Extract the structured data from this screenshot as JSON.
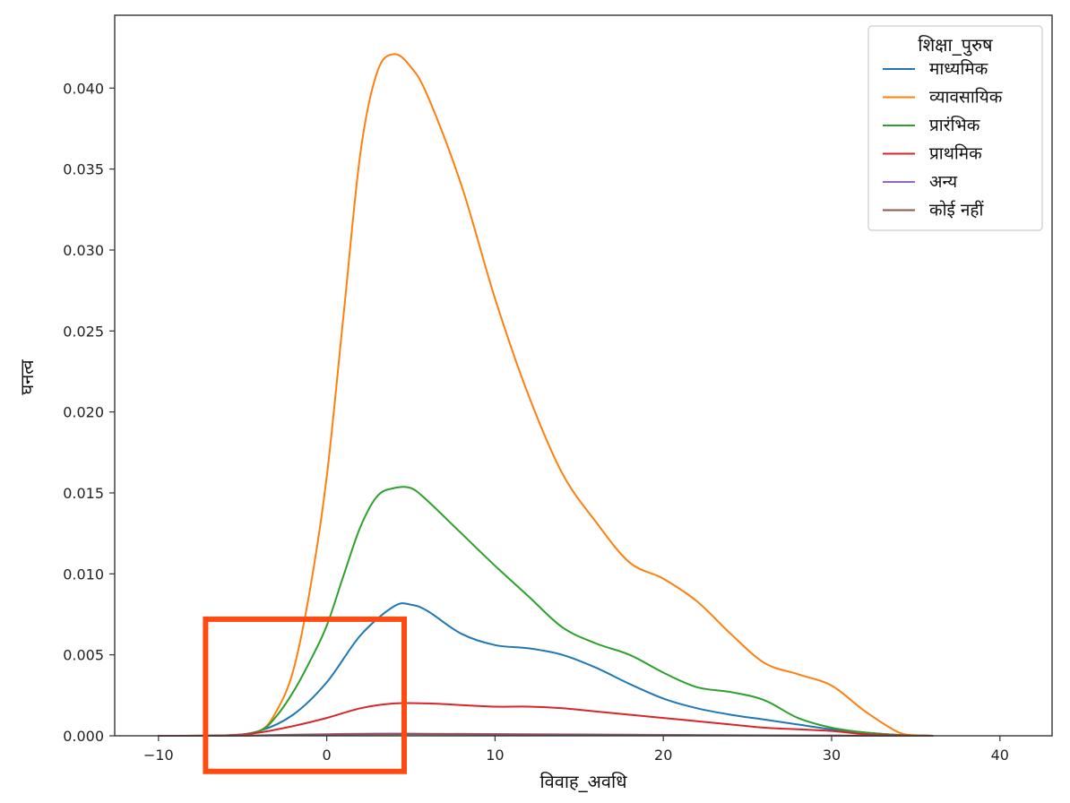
{
  "chart_data": {
    "type": "line",
    "title": "",
    "xlabel": "विवाह_अवधि",
    "ylabel": "घनत्व",
    "xlim": [
      -12.6,
      43.1
    ],
    "ylim": [
      0,
      0.0445
    ],
    "xticks": [
      -10,
      0,
      10,
      20,
      30,
      40
    ],
    "xtick_labels": [
      "−10",
      "0",
      "10",
      "20",
      "30",
      "40"
    ],
    "yticks": [
      0,
      0.005,
      0.01,
      0.015,
      0.02,
      0.025,
      0.03,
      0.035,
      0.04
    ],
    "ytick_labels": [
      "0.000",
      "0.005",
      "0.010",
      "0.015",
      "0.020",
      "0.025",
      "0.030",
      "0.035",
      "0.040"
    ],
    "grid": false,
    "legend": {
      "title": "शिक्षा_पुरुष",
      "position": "top-right"
    },
    "series": [
      {
        "name": "माध्यमिक",
        "color": "#1f77b4",
        "x": [
          -10,
          -6,
          -4,
          -2,
          0,
          2,
          4,
          5,
          6,
          8,
          10,
          12,
          14,
          16,
          18,
          20,
          22,
          24,
          26,
          28,
          30,
          32,
          34,
          36
        ],
        "y": [
          0,
          3e-05,
          0.0003,
          0.0013,
          0.0033,
          0.0062,
          0.008,
          0.0081,
          0.0077,
          0.0063,
          0.0056,
          0.0054,
          0.005,
          0.0042,
          0.0032,
          0.0023,
          0.0017,
          0.0013,
          0.001,
          0.0007,
          0.0004,
          0.0002,
          5e-05,
          0
        ]
      },
      {
        "name": "व्यावसायिक",
        "color": "#ff7f0e",
        "x": [
          -10,
          -6,
          -4,
          -3,
          -2,
          -1,
          0,
          1,
          2,
          3,
          4,
          5,
          6,
          8,
          10,
          12,
          14,
          16,
          18,
          20,
          22,
          24,
          26,
          28,
          30,
          32,
          34,
          35,
          36
        ],
        "y": [
          0,
          2e-05,
          0.0003,
          0.0015,
          0.004,
          0.009,
          0.016,
          0.026,
          0.036,
          0.041,
          0.0421,
          0.0413,
          0.0395,
          0.034,
          0.027,
          0.021,
          0.0162,
          0.0132,
          0.0107,
          0.0097,
          0.0083,
          0.0063,
          0.0045,
          0.0038,
          0.0031,
          0.0015,
          0.0002,
          3e-05,
          0
        ]
      },
      {
        "name": "प्रारंभिक",
        "color": "#2ca02c",
        "x": [
          -10,
          -6,
          -4,
          -3,
          -2,
          -1,
          0,
          1,
          2,
          3,
          4,
          5,
          6,
          8,
          10,
          12,
          14,
          16,
          18,
          20,
          22,
          24,
          26,
          28,
          30,
          32,
          34,
          36
        ],
        "y": [
          0,
          2e-05,
          0.0003,
          0.0012,
          0.0027,
          0.0046,
          0.0068,
          0.0099,
          0.0129,
          0.0148,
          0.0153,
          0.0153,
          0.0145,
          0.0125,
          0.0105,
          0.0086,
          0.0067,
          0.0057,
          0.005,
          0.0039,
          0.003,
          0.0027,
          0.0022,
          0.0011,
          0.0005,
          0.0002,
          5e-05,
          0
        ]
      },
      {
        "name": "प्राथमिक",
        "color": "#d62728",
        "x": [
          -10,
          -6,
          -4,
          -2,
          0,
          2,
          4,
          6,
          8,
          10,
          12,
          14,
          16,
          18,
          20,
          22,
          24,
          26,
          28,
          30,
          32,
          34,
          36
        ],
        "y": [
          0,
          2e-05,
          0.0002,
          0.0006,
          0.0011,
          0.0017,
          0.002,
          0.002,
          0.0019,
          0.0018,
          0.0018,
          0.0017,
          0.0015,
          0.0013,
          0.0011,
          0.0009,
          0.0007,
          0.0005,
          0.0004,
          0.0003,
          0.0001,
          3e-05,
          0
        ]
      },
      {
        "name": "अन्य",
        "color": "#9467bd",
        "x": [
          -10,
          -6,
          -4,
          -2,
          0,
          2,
          4,
          6,
          10,
          14,
          18,
          22,
          26,
          30,
          34,
          36
        ],
        "y": [
          0,
          5e-06,
          3e-05,
          7e-05,
          0.0001,
          0.00013,
          0.00014,
          0.00013,
          0.00011,
          9e-05,
          7e-05,
          5e-05,
          3e-05,
          1e-05,
          2e-06,
          0
        ]
      },
      {
        "name": "कोई नहीं",
        "color": "#8c564b",
        "x": [
          -10,
          -6,
          -4,
          -2,
          0,
          2,
          4,
          6,
          10,
          14,
          18,
          22,
          26,
          30,
          34,
          36
        ],
        "y": [
          0,
          4e-06,
          2e-05,
          5e-05,
          7e-05,
          9e-05,
          0.0001,
          0.0001,
          8e-05,
          6e-05,
          5e-05,
          3e-05,
          2e-05,
          1e-05,
          1e-06,
          0
        ]
      }
    ],
    "annotation_box": {
      "color": "#ff4a12",
      "x": [
        -7.2,
        4.6
      ],
      "y": [
        -0.0022,
        0.0072
      ]
    }
  }
}
